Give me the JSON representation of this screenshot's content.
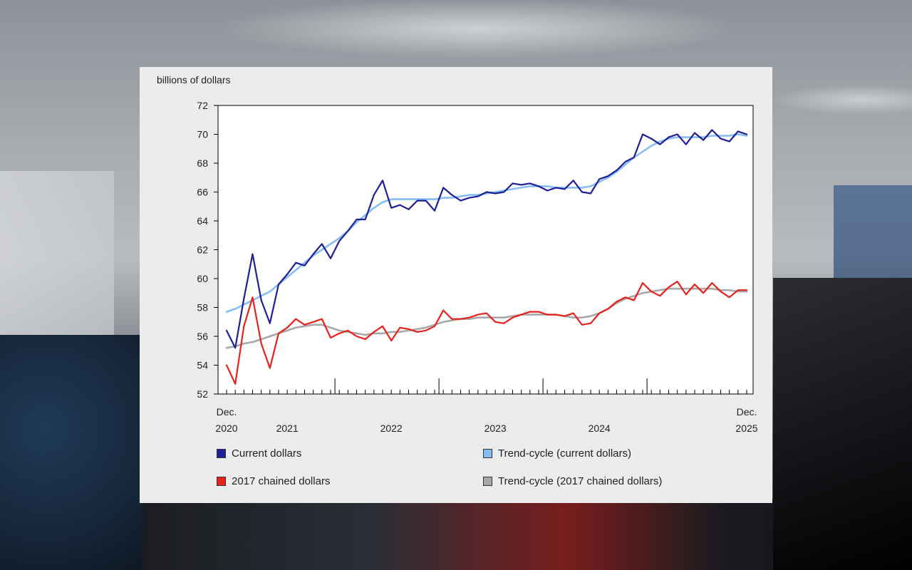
{
  "colors": {
    "current": "#1f1f99",
    "trend_current": "#86bdf2",
    "chained": "#e8211b",
    "trend_chained": "#a8a8a8"
  },
  "chart_data": {
    "type": "line",
    "ylabel": "billions of dollars",
    "ylim": [
      52,
      72
    ],
    "yticks": [
      52,
      54,
      56,
      58,
      60,
      62,
      64,
      66,
      68,
      70,
      72
    ],
    "x_start": "Dec. 2020",
    "x_end": "Dec. 2025",
    "x_month_count": 61,
    "x_tick_labels": [
      {
        "index": 0,
        "line1": "Dec.",
        "line2": "2020"
      },
      {
        "index": 7,
        "line1": "",
        "line2": "2021"
      },
      {
        "index": 19,
        "line1": "",
        "line2": "2022"
      },
      {
        "index": 31,
        "line1": "",
        "line2": "2023"
      },
      {
        "index": 43,
        "line1": "",
        "line2": "2024"
      },
      {
        "index": 60,
        "line1": "Dec.",
        "line2": "2025"
      }
    ],
    "year_boundaries": [
      12.5,
      24.5,
      36.5,
      48.5
    ],
    "grid": false,
    "legend_position": "bottom",
    "series": [
      {
        "key": "current",
        "name": "Current dollars",
        "values": [
          56.4,
          55.2,
          58.6,
          61.7,
          58.5,
          56.9,
          59.6,
          60.3,
          61.1,
          60.9,
          61.7,
          62.4,
          61.4,
          62.6,
          63.3,
          64.1,
          64.1,
          65.8,
          66.8,
          64.9,
          65.1,
          64.8,
          65.4,
          65.4,
          64.7,
          66.3,
          65.8,
          65.4,
          65.6,
          65.7,
          66.0,
          65.9,
          66.0,
          66.6,
          66.5,
          66.6,
          66.4,
          66.1,
          66.3,
          66.2,
          66.8,
          66.0,
          65.9,
          66.9,
          67.1,
          67.5,
          68.1,
          68.4,
          70.0,
          69.7,
          69.3,
          69.8,
          70.0,
          69.3,
          70.1,
          69.6,
          70.3,
          69.7,
          69.5,
          70.2,
          70.0
        ]
      },
      {
        "key": "trend_current",
        "name": "Trend-cycle (current dollars)",
        "values": [
          57.7,
          57.9,
          58.2,
          58.5,
          58.8,
          59.1,
          59.6,
          60.1,
          60.6,
          61.1,
          61.6,
          62.0,
          62.4,
          62.8,
          63.3,
          63.9,
          64.4,
          64.9,
          65.3,
          65.5,
          65.5,
          65.5,
          65.5,
          65.5,
          65.5,
          65.6,
          65.6,
          65.7,
          65.8,
          65.8,
          65.9,
          66.0,
          66.1,
          66.2,
          66.3,
          66.4,
          66.4,
          66.4,
          66.3,
          66.3,
          66.3,
          66.3,
          66.4,
          66.7,
          67.0,
          67.4,
          67.9,
          68.4,
          68.8,
          69.2,
          69.5,
          69.7,
          69.8,
          69.8,
          69.8,
          69.8,
          69.9,
          69.9,
          69.9,
          70.0,
          69.9
        ]
      },
      {
        "key": "chained",
        "name": "2017 chained dollars",
        "values": [
          54.0,
          52.7,
          56.7,
          58.7,
          55.5,
          53.8,
          56.2,
          56.6,
          57.2,
          56.8,
          57.0,
          57.2,
          55.9,
          56.2,
          56.4,
          56.0,
          55.8,
          56.3,
          56.7,
          55.7,
          56.6,
          56.5,
          56.3,
          56.4,
          56.7,
          57.8,
          57.2,
          57.2,
          57.3,
          57.5,
          57.6,
          57.0,
          56.9,
          57.3,
          57.5,
          57.7,
          57.7,
          57.5,
          57.5,
          57.4,
          57.6,
          56.8,
          56.9,
          57.6,
          57.9,
          58.4,
          58.7,
          58.5,
          59.7,
          59.1,
          58.8,
          59.4,
          59.8,
          58.9,
          59.6,
          59.0,
          59.7,
          59.1,
          58.7,
          59.2,
          59.2
        ]
      },
      {
        "key": "trend_chained",
        "name": "Trend-cycle (2017 chained dollars)",
        "values": [
          55.2,
          55.3,
          55.5,
          55.6,
          55.8,
          56.0,
          56.2,
          56.4,
          56.6,
          56.7,
          56.8,
          56.8,
          56.6,
          56.4,
          56.3,
          56.2,
          56.1,
          56.2,
          56.2,
          56.3,
          56.3,
          56.4,
          56.5,
          56.6,
          56.8,
          57.0,
          57.1,
          57.2,
          57.2,
          57.3,
          57.3,
          57.3,
          57.3,
          57.4,
          57.5,
          57.5,
          57.5,
          57.5,
          57.5,
          57.4,
          57.3,
          57.3,
          57.4,
          57.6,
          57.9,
          58.3,
          58.6,
          58.8,
          59.0,
          59.1,
          59.2,
          59.3,
          59.3,
          59.3,
          59.3,
          59.3,
          59.3,
          59.2,
          59.2,
          59.1,
          59.1
        ]
      }
    ]
  }
}
